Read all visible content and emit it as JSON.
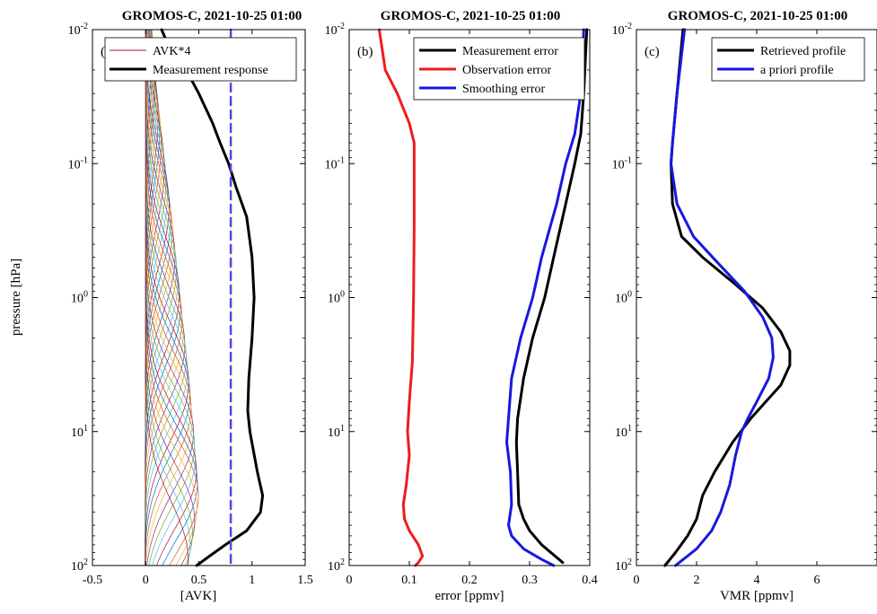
{
  "chart_data": [
    {
      "type": "line",
      "panel_label": "(a)",
      "title": "GROMOS-C, 2021-10-25 01:00",
      "xlabel": "[AVK]",
      "ylabel": "pressure [hPa]",
      "xlim": [
        -0.5,
        1.5
      ],
      "ylim": [
        0.01,
        100
      ],
      "yscale": "log",
      "y_reversed": true,
      "grid": false,
      "legend_position": "top-right",
      "xticks": [
        "-0.5",
        "0",
        "0.5",
        "1",
        "1.5"
      ],
      "ytick_values": [
        0.01,
        0.1,
        1,
        10,
        100
      ],
      "yticks": [
        "10-2",
        "10-1",
        "100",
        "101",
        "102"
      ],
      "legend": [
        "AVK*4",
        "Measurement response"
      ],
      "series": [
        {
          "name": "Measurement response",
          "color": "#000000",
          "points": [
            [
              0.15,
              0.01
            ],
            [
              0.23,
              0.014
            ],
            [
              0.38,
              0.02
            ],
            [
              0.5,
              0.03
            ],
            [
              0.63,
              0.05
            ],
            [
              0.7,
              0.07
            ],
            [
              0.78,
              0.1
            ],
            [
              0.85,
              0.15
            ],
            [
              0.95,
              0.25
            ],
            [
              1.0,
              0.5
            ],
            [
              1.02,
              1
            ],
            [
              1.0,
              2
            ],
            [
              0.97,
              4
            ],
            [
              0.96,
              7
            ],
            [
              0.98,
              10
            ],
            [
              1.05,
              20
            ],
            [
              1.1,
              30
            ],
            [
              1.08,
              40
            ],
            [
              0.95,
              55
            ],
            [
              0.75,
              70
            ],
            [
              0.6,
              85
            ],
            [
              0.48,
              100
            ]
          ]
        },
        {
          "name": "",
          "color": "#4a4ae6",
          "dashed": true,
          "points": [
            [
              0.8,
              0.01
            ],
            [
              0.8,
              100
            ]
          ]
        }
      ],
      "avk_kernels": {
        "count": 42,
        "log_p_top": -1.9,
        "log_p_bottom": 1.95,
        "width_decades": 0.6,
        "color_cycle": [
          "#0072BD",
          "#D95319",
          "#EDB120",
          "#7E2F8E",
          "#77AC30",
          "#4DBEEE",
          "#A2142F"
        ],
        "peak_points": [
          [
            -2.0,
            0.05
          ],
          [
            -1.5,
            0.09
          ],
          [
            -1.0,
            0.17
          ],
          [
            -0.5,
            0.25
          ],
          [
            0.0,
            0.32
          ],
          [
            0.5,
            0.39
          ],
          [
            1.0,
            0.45
          ],
          [
            1.5,
            0.5
          ],
          [
            1.95,
            0.4
          ]
        ]
      }
    },
    {
      "type": "line",
      "panel_label": "(b)",
      "title": "GROMOS-C, 2021-10-25 01:00",
      "xlabel": "error [ppmv]",
      "xlim": [
        0,
        0.4
      ],
      "ylim": [
        0.01,
        100
      ],
      "yscale": "log",
      "y_reversed": true,
      "grid": false,
      "legend_position": "top-right",
      "xticks": [
        "0",
        "0.1",
        "0.2",
        "0.3",
        "0.4"
      ],
      "ytick_values": [
        0.01,
        0.1,
        1,
        10,
        100
      ],
      "yticks": [
        "10-2",
        "10-1",
        "100",
        "101",
        "102"
      ],
      "series": [
        {
          "name": "Measurement error",
          "color": "#000000",
          "points": [
            [
              0.395,
              0.01
            ],
            [
              0.39,
              0.03
            ],
            [
              0.385,
              0.06
            ],
            [
              0.375,
              0.1
            ],
            [
              0.36,
              0.2
            ],
            [
              0.34,
              0.5
            ],
            [
              0.325,
              1
            ],
            [
              0.305,
              2
            ],
            [
              0.29,
              4
            ],
            [
              0.28,
              8
            ],
            [
              0.278,
              12
            ],
            [
              0.28,
              20
            ],
            [
              0.282,
              35
            ],
            [
              0.29,
              45
            ],
            [
              0.3,
              55
            ],
            [
              0.32,
              70
            ],
            [
              0.355,
              95
            ]
          ]
        },
        {
          "name": "Observation error",
          "color": "#ee1c1c",
          "points": [
            [
              0.05,
              0.01
            ],
            [
              0.06,
              0.02
            ],
            [
              0.08,
              0.03
            ],
            [
              0.1,
              0.05
            ],
            [
              0.108,
              0.07
            ],
            [
              0.108,
              0.1
            ],
            [
              0.108,
              0.3
            ],
            [
              0.107,
              1
            ],
            [
              0.105,
              3
            ],
            [
              0.1,
              6
            ],
            [
              0.097,
              10
            ],
            [
              0.1,
              15
            ],
            [
              0.095,
              25
            ],
            [
              0.09,
              35
            ],
            [
              0.092,
              45
            ],
            [
              0.1,
              55
            ],
            [
              0.115,
              70
            ],
            [
              0.122,
              85
            ],
            [
              0.115,
              95
            ],
            [
              0.11,
              100
            ]
          ]
        },
        {
          "name": "Smoothing error",
          "color": "#1818e0",
          "points": [
            [
              0.39,
              0.01
            ],
            [
              0.385,
              0.03
            ],
            [
              0.375,
              0.06
            ],
            [
              0.36,
              0.1
            ],
            [
              0.345,
              0.2
            ],
            [
              0.32,
              0.5
            ],
            [
              0.305,
              1
            ],
            [
              0.285,
              2
            ],
            [
              0.27,
              4
            ],
            [
              0.265,
              8
            ],
            [
              0.262,
              12
            ],
            [
              0.268,
              20
            ],
            [
              0.27,
              35
            ],
            [
              0.265,
              50
            ],
            [
              0.27,
              60
            ],
            [
              0.29,
              75
            ],
            [
              0.32,
              90
            ],
            [
              0.34,
              100
            ]
          ]
        }
      ]
    },
    {
      "type": "line",
      "panel_label": "(c)",
      "title": "GROMOS-C, 2021-10-25 01:00",
      "xlabel": "VMR [ppmv]",
      "xlim": [
        0,
        8
      ],
      "ylim": [
        0.01,
        100
      ],
      "yscale": "log",
      "y_reversed": true,
      "grid": false,
      "legend_position": "top-right",
      "xticks": [
        "0",
        "2",
        "4",
        "6"
      ],
      "ytick_values": [
        0.01,
        0.1,
        1,
        10,
        100
      ],
      "yticks": [
        "10-2",
        "10-1",
        "100",
        "101",
        "102"
      ],
      "series": [
        {
          "name": "Retrieved profile",
          "color": "#000000",
          "points": [
            [
              1.55,
              0.01
            ],
            [
              1.35,
              0.03
            ],
            [
              1.2,
              0.07
            ],
            [
              1.15,
              0.1
            ],
            [
              1.2,
              0.2
            ],
            [
              1.5,
              0.35
            ],
            [
              2.2,
              0.5
            ],
            [
              3.3,
              0.8
            ],
            [
              4.2,
              1.2
            ],
            [
              4.8,
              1.8
            ],
            [
              5.1,
              2.5
            ],
            [
              5.1,
              3.2
            ],
            [
              4.8,
              4.5
            ],
            [
              4.3,
              6
            ],
            [
              3.8,
              8
            ],
            [
              3.2,
              12
            ],
            [
              2.6,
              20
            ],
            [
              2.2,
              30
            ],
            [
              2.0,
              45
            ],
            [
              1.7,
              60
            ],
            [
              1.3,
              80
            ],
            [
              0.95,
              100
            ]
          ]
        },
        {
          "name": "a priori profile",
          "color": "#1818e0",
          "points": [
            [
              1.6,
              0.01
            ],
            [
              1.35,
              0.03
            ],
            [
              1.2,
              0.07
            ],
            [
              1.15,
              0.1
            ],
            [
              1.35,
              0.2
            ],
            [
              1.9,
              0.35
            ],
            [
              2.7,
              0.55
            ],
            [
              3.6,
              0.9
            ],
            [
              4.2,
              1.4
            ],
            [
              4.5,
              2
            ],
            [
              4.55,
              2.8
            ],
            [
              4.4,
              4
            ],
            [
              4.0,
              6
            ],
            [
              3.7,
              8
            ],
            [
              3.5,
              10
            ],
            [
              3.3,
              15
            ],
            [
              3.1,
              25
            ],
            [
              2.8,
              40
            ],
            [
              2.5,
              55
            ],
            [
              2.0,
              75
            ],
            [
              1.3,
              100
            ]
          ]
        }
      ]
    }
  ]
}
